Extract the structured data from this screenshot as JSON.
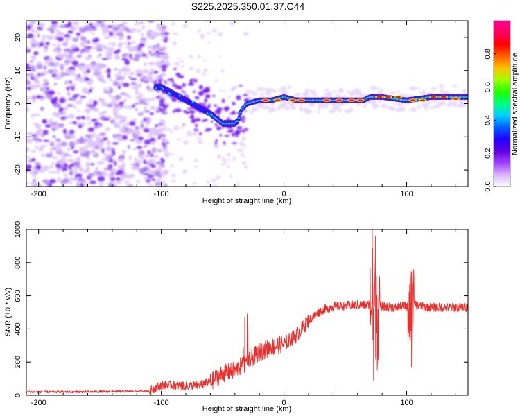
{
  "title": "S225.2025.350.01.37.C44",
  "chart_data": [
    {
      "type": "heatmap",
      "name": "spectrogram",
      "xlabel": "Height of straight line (km)",
      "ylabel": "Frequency (Hz)",
      "xlim": [
        -210,
        150
      ],
      "ylim": [
        -25,
        25
      ],
      "xticks": [
        -200,
        -100,
        0,
        100
      ],
      "xtick_labels": [
        "-200",
        "-100",
        "0",
        "100"
      ],
      "yticks": [
        -20,
        -10,
        0,
        10,
        20
      ],
      "ytick_labels": [
        "-20",
        "-10",
        "0",
        "10",
        "20"
      ],
      "colorbar": {
        "label": "Normalized spectral amplitude",
        "range": [
          0,
          1
        ],
        "ticks": [
          0.0,
          0.2,
          0.4,
          0.6,
          0.8
        ],
        "tick_labels": [
          "0.0",
          "0.2",
          "0.4",
          "0.6",
          "0.8"
        ],
        "colors": [
          "#ffffff",
          "#c080ff",
          "#6000e0",
          "#0000ff",
          "#00e0ff",
          "#00ff40",
          "#c0ff00",
          "#ff8000",
          "#ff0000",
          "#ff0090"
        ]
      },
      "ridge": {
        "x": [
          -100,
          -90,
          -80,
          -70,
          -60,
          -50,
          -40,
          -37,
          -35,
          -30,
          -20,
          -10,
          0,
          10,
          20,
          40,
          60,
          65,
          70,
          80,
          100,
          120,
          150
        ],
        "freq_hz": [
          5,
          3,
          1,
          -1,
          -3,
          -6,
          -6,
          -5,
          -2,
          0,
          1,
          1,
          2,
          1,
          1,
          1,
          1,
          1,
          2,
          2,
          1,
          2,
          2
        ]
      }
    },
    {
      "type": "line",
      "name": "snr",
      "xlabel": "Height of straight line (km)",
      "ylabel": "SNR (10 * v/v)",
      "xlim": [
        -210,
        150
      ],
      "ylim": [
        0,
        1000
      ],
      "xticks": [
        -200,
        -100,
        0,
        100
      ],
      "xtick_labels": [
        "-200",
        "-100",
        "0",
        "100"
      ],
      "yticks": [
        0,
        200,
        400,
        600,
        800,
        1000
      ],
      "ytick_labels": [
        "0",
        "200",
        "400",
        "600",
        "800",
        "1000"
      ],
      "color": "#e8302e",
      "x": [
        -210,
        -160,
        -110,
        -100,
        -90,
        -80,
        -70,
        -60,
        -50,
        -40,
        -30,
        -20,
        -10,
        0,
        10,
        20,
        30,
        40,
        50,
        60,
        68,
        72,
        74,
        76,
        80,
        90,
        100,
        103,
        106,
        110,
        120,
        130,
        140,
        150
      ],
      "y": [
        20,
        20,
        25,
        60,
        60,
        55,
        60,
        80,
        130,
        150,
        200,
        260,
        290,
        310,
        360,
        450,
        510,
        535,
        540,
        545,
        545,
        560,
        550,
        550,
        535,
        530,
        540,
        500,
        550,
        540,
        530,
        530,
        530,
        530
      ],
      "spikes": [
        {
          "x": 72,
          "y": 1000
        },
        {
          "x": 73,
          "y": 90
        },
        {
          "x": 74.5,
          "y": 960
        },
        {
          "x": 76,
          "y": 150
        },
        {
          "x": 103,
          "y": 720
        },
        {
          "x": 104,
          "y": 170
        },
        {
          "x": -30,
          "y": 490
        },
        {
          "x": -32,
          "y": 470
        }
      ]
    }
  ]
}
